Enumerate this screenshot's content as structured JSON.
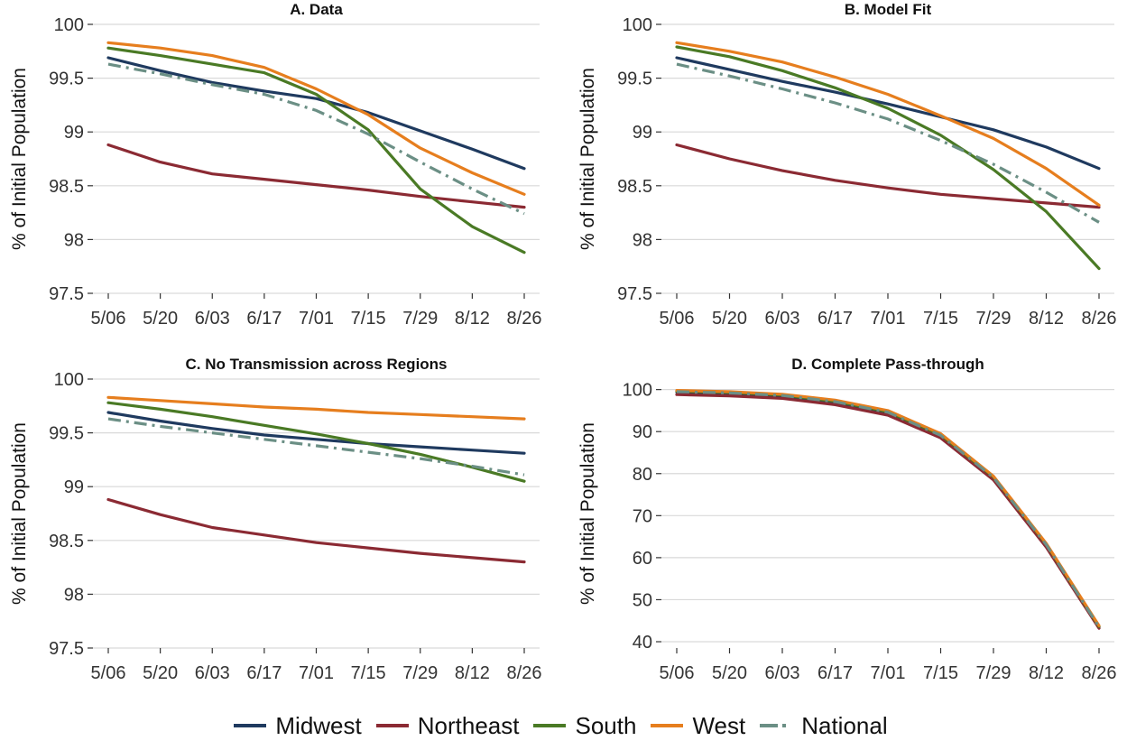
{
  "chart_data": [
    {
      "type": "line",
      "title": "A. Data",
      "ylabel": "% of Initial Population",
      "ylim": [
        97.5,
        100
      ],
      "yticks": [
        97.5,
        98,
        98.5,
        99,
        99.5,
        100
      ],
      "ytick_labels": [
        "97.5",
        "98",
        "98.5",
        "99",
        "99.5",
        "100"
      ],
      "x": [
        "5/06",
        "5/20",
        "6/03",
        "6/17",
        "7/01",
        "7/15",
        "7/29",
        "8/12",
        "8/26"
      ],
      "series": [
        {
          "name": "Midwest",
          "values": [
            99.69,
            99.57,
            99.46,
            99.38,
            99.31,
            99.18,
            99.01,
            98.84,
            98.66
          ]
        },
        {
          "name": "Northeast",
          "values": [
            98.88,
            98.72,
            98.61,
            98.56,
            98.51,
            98.46,
            98.4,
            98.35,
            98.3
          ]
        },
        {
          "name": "South",
          "values": [
            99.78,
            99.71,
            99.63,
            99.55,
            99.35,
            99.02,
            98.47,
            98.12,
            97.88
          ]
        },
        {
          "name": "West",
          "values": [
            99.83,
            99.78,
            99.71,
            99.6,
            99.4,
            99.16,
            98.85,
            98.62,
            98.42
          ]
        },
        {
          "name": "National",
          "values": [
            99.63,
            99.54,
            99.44,
            99.35,
            99.2,
            98.98,
            98.72,
            98.47,
            98.24
          ]
        }
      ]
    },
    {
      "type": "line",
      "title": "B. Model Fit",
      "ylabel": "% of Initial Population",
      "ylim": [
        97.5,
        100
      ],
      "yticks": [
        97.5,
        98,
        98.5,
        99,
        99.5,
        100
      ],
      "ytick_labels": [
        "97.5",
        "98",
        "98.5",
        "99",
        "99.5",
        "100"
      ],
      "x": [
        "5/06",
        "5/20",
        "6/03",
        "6/17",
        "7/01",
        "7/15",
        "7/29",
        "8/12",
        "8/26"
      ],
      "series": [
        {
          "name": "Midwest",
          "values": [
            99.69,
            99.58,
            99.47,
            99.37,
            99.26,
            99.14,
            99.02,
            98.86,
            98.66
          ]
        },
        {
          "name": "Northeast",
          "values": [
            98.88,
            98.75,
            98.64,
            98.55,
            98.48,
            98.42,
            98.38,
            98.34,
            98.3
          ]
        },
        {
          "name": "South",
          "values": [
            99.79,
            99.7,
            99.57,
            99.41,
            99.22,
            98.97,
            98.65,
            98.26,
            97.73
          ]
        },
        {
          "name": "West",
          "values": [
            99.83,
            99.75,
            99.65,
            99.51,
            99.35,
            99.15,
            98.94,
            98.66,
            98.32
          ]
        },
        {
          "name": "National",
          "values": [
            99.63,
            99.52,
            99.4,
            99.27,
            99.12,
            98.92,
            98.7,
            98.44,
            98.16
          ]
        }
      ]
    },
    {
      "type": "line",
      "title": "C. No Transmission across Regions",
      "ylabel": "% of Initial Population",
      "ylim": [
        97.5,
        100
      ],
      "yticks": [
        97.5,
        98,
        98.5,
        99,
        99.5,
        100
      ],
      "ytick_labels": [
        "97.5",
        "98",
        "98.5",
        "99",
        "99.5",
        "100"
      ],
      "x": [
        "5/06",
        "5/20",
        "6/03",
        "6/17",
        "7/01",
        "7/15",
        "7/29",
        "8/12",
        "8/26"
      ],
      "series": [
        {
          "name": "Midwest",
          "values": [
            99.69,
            99.61,
            99.54,
            99.48,
            99.44,
            99.4,
            99.37,
            99.34,
            99.31
          ]
        },
        {
          "name": "Northeast",
          "values": [
            98.88,
            98.74,
            98.62,
            98.55,
            98.48,
            98.43,
            98.38,
            98.34,
            98.3
          ]
        },
        {
          "name": "South",
          "values": [
            99.78,
            99.72,
            99.65,
            99.57,
            99.49,
            99.4,
            99.3,
            99.18,
            99.05
          ]
        },
        {
          "name": "West",
          "values": [
            99.83,
            99.8,
            99.77,
            99.74,
            99.72,
            99.69,
            99.67,
            99.65,
            99.63
          ]
        },
        {
          "name": "National",
          "values": [
            99.63,
            99.56,
            99.5,
            99.44,
            99.38,
            99.32,
            99.26,
            99.19,
            99.11
          ]
        }
      ]
    },
    {
      "type": "line",
      "title": "D. Complete Pass-through",
      "ylabel": "% of Initial Population",
      "ylim": [
        38.5,
        102.5
      ],
      "yticks": [
        40,
        50,
        60,
        70,
        80,
        90,
        100
      ],
      "ytick_labels": [
        "40",
        "50",
        "60",
        "70",
        "80",
        "90",
        "100"
      ],
      "x": [
        "5/06",
        "5/20",
        "6/03",
        "6/17",
        "7/01",
        "7/15",
        "7/29",
        "8/12",
        "8/26"
      ],
      "series": [
        {
          "name": "Midwest",
          "values": [
            99.4,
            99.1,
            98.5,
            97.0,
            94.5,
            89.0,
            79.0,
            63.0,
            43.5
          ]
        },
        {
          "name": "Northeast",
          "values": [
            98.8,
            98.5,
            97.9,
            96.4,
            93.9,
            88.5,
            78.5,
            62.5,
            43.2
          ]
        },
        {
          "name": "South",
          "values": [
            99.6,
            99.3,
            98.7,
            97.2,
            94.7,
            89.2,
            79.2,
            63.2,
            43.6
          ]
        },
        {
          "name": "West",
          "values": [
            99.8,
            99.5,
            98.9,
            97.5,
            95.0,
            89.5,
            79.4,
            63.4,
            43.8
          ]
        },
        {
          "name": "National",
          "values": [
            99.5,
            99.2,
            98.6,
            97.1,
            94.6,
            89.1,
            79.1,
            63.1,
            43.5
          ]
        }
      ]
    }
  ],
  "legend": {
    "position": "bottom",
    "items": [
      {
        "label": "Midwest",
        "color": "#1f3a5f",
        "dash": "solid"
      },
      {
        "label": "Northeast",
        "color": "#8b2a33",
        "dash": "solid"
      },
      {
        "label": "South",
        "color": "#4a7a25",
        "dash": "solid"
      },
      {
        "label": "West",
        "color": "#e67e1e",
        "dash": "solid"
      },
      {
        "label": "National",
        "color": "#6b8f85",
        "dash": "dashdot"
      }
    ]
  },
  "grid": "horizontal"
}
